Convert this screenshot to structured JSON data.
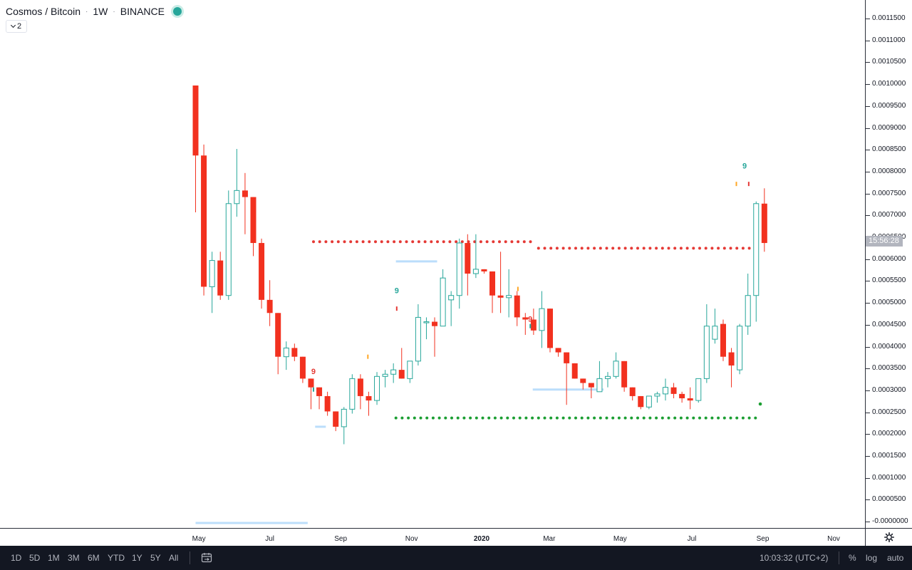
{
  "header": {
    "symbol": "Cosmos / Bitcoin",
    "interval": "1W",
    "exchange": "BINANCE",
    "separator": "·",
    "indicator_count": "2"
  },
  "price_scale": {
    "labels": [
      "0.0011500",
      "0.0011000",
      "0.0010500",
      "0.0010000",
      "0.0009500",
      "0.0009000",
      "0.0008500",
      "0.0008000",
      "0.0007500",
      "0.0007000",
      "0.0006500",
      "0.0006000",
      "0.0005500",
      "0.0005000",
      "0.0004500",
      "0.0004000",
      "0.0003500",
      "0.0003000",
      "0.0002500",
      "0.0002000",
      "0.0001500",
      "0.0001000",
      "0.0000500",
      "-0.0000000"
    ],
    "countdown": "15:56:28"
  },
  "time_axis": {
    "labels": [
      {
        "text": "May",
        "idx": 0.4,
        "bold": false
      },
      {
        "text": "Jul",
        "idx": 9.0,
        "bold": false
      },
      {
        "text": "Sep",
        "idx": 17.6,
        "bold": false
      },
      {
        "text": "Nov",
        "idx": 26.2,
        "bold": false
      },
      {
        "text": "2020",
        "idx": 34.7,
        "bold": true
      },
      {
        "text": "Mar",
        "idx": 42.9,
        "bold": false
      },
      {
        "text": "May",
        "idx": 51.5,
        "bold": false
      },
      {
        "text": "Jul",
        "idx": 60.2,
        "bold": false
      },
      {
        "text": "Sep",
        "idx": 68.8,
        "bold": false
      },
      {
        "text": "Nov",
        "idx": 77.4,
        "bold": false
      }
    ]
  },
  "bottom_bar": {
    "ranges": [
      "1D",
      "5D",
      "1M",
      "3M",
      "6M",
      "YTD",
      "1Y",
      "5Y",
      "All"
    ],
    "clock": "10:03:32 (UTC+2)",
    "options": [
      "%",
      "log",
      "auto"
    ]
  },
  "colors": {
    "up": "#26a69a",
    "down": "#f2311f",
    "resistance": "#e53935",
    "support": "#1b9e32",
    "level": "#bbdefb",
    "td9_red": "#e53935",
    "td9_green": "#26a69a",
    "td_orange": "#ffa726"
  },
  "chart_data": {
    "type": "candlestick",
    "title": "Cosmos / Bitcoin",
    "interval": "1W",
    "y_range": [
      -2e-05,
      0.0012
    ],
    "candles": [
      {
        "o": 0.001,
        "h": 0.001,
        "l": 0.00071,
        "c": 0.00084
      },
      {
        "o": 0.00084,
        "h": 0.000865,
        "l": 0.00052,
        "c": 0.00054
      },
      {
        "o": 0.00054,
        "h": 0.00062,
        "l": 0.00048,
        "c": 0.0006
      },
      {
        "o": 0.0006,
        "h": 0.00062,
        "l": 0.00051,
        "c": 0.00052
      },
      {
        "o": 0.00052,
        "h": 0.00076,
        "l": 0.00051,
        "c": 0.00073
      },
      {
        "o": 0.00073,
        "h": 0.000855,
        "l": 0.0007,
        "c": 0.00076
      },
      {
        "o": 0.00076,
        "h": 0.0008,
        "l": 0.00066,
        "c": 0.000745
      },
      {
        "o": 0.000745,
        "h": 0.000745,
        "l": 0.00061,
        "c": 0.00064
      },
      {
        "o": 0.00064,
        "h": 0.00065,
        "l": 0.00049,
        "c": 0.00051
      },
      {
        "o": 0.00051,
        "h": 0.000555,
        "l": 0.00045,
        "c": 0.00048
      },
      {
        "o": 0.00048,
        "h": 0.00048,
        "l": 0.00034,
        "c": 0.00038
      },
      {
        "o": 0.00038,
        "h": 0.000415,
        "l": 0.00035,
        "c": 0.0004
      },
      {
        "o": 0.0004,
        "h": 0.00041,
        "l": 0.00037,
        "c": 0.00038
      },
      {
        "o": 0.00038,
        "h": 0.00038,
        "l": 0.00032,
        "c": 0.00033
      },
      {
        "o": 0.00033,
        "h": 0.00033,
        "l": 0.00026,
        "c": 0.00031
      },
      {
        "o": 0.00031,
        "h": 0.00031,
        "l": 0.00026,
        "c": 0.00029
      },
      {
        "o": 0.00029,
        "h": 0.0003,
        "l": 0.000245,
        "c": 0.000255
      },
      {
        "o": 0.000255,
        "h": 0.000255,
        "l": 0.00021,
        "c": 0.00022
      },
      {
        "o": 0.00022,
        "h": 0.000265,
        "l": 0.00018,
        "c": 0.00026
      },
      {
        "o": 0.00026,
        "h": 0.00034,
        "l": 0.00025,
        "c": 0.00033
      },
      {
        "o": 0.00033,
        "h": 0.00034,
        "l": 0.00026,
        "c": 0.00029
      },
      {
        "o": 0.00029,
        "h": 0.0003,
        "l": 0.000245,
        "c": 0.00028
      },
      {
        "o": 0.00028,
        "h": 0.000345,
        "l": 0.00027,
        "c": 0.000335
      },
      {
        "o": 0.000335,
        "h": 0.00035,
        "l": 0.00031,
        "c": 0.00034
      },
      {
        "o": 0.00034,
        "h": 0.000365,
        "l": 0.00032,
        "c": 0.00035
      },
      {
        "o": 0.00035,
        "h": 0.0004,
        "l": 0.00033,
        "c": 0.00033
      },
      {
        "o": 0.00033,
        "h": 0.00037,
        "l": 0.00032,
        "c": 0.00037
      },
      {
        "o": 0.00037,
        "h": 0.0005,
        "l": 0.00036,
        "c": 0.00047
      },
      {
        "o": 0.00046,
        "h": 0.00047,
        "l": 0.00042,
        "c": 0.00046
      },
      {
        "o": 0.00046,
        "h": 0.00047,
        "l": 0.00038,
        "c": 0.00045
      },
      {
        "o": 0.00045,
        "h": 0.00058,
        "l": 0.00045,
        "c": 0.00056
      },
      {
        "o": 0.00051,
        "h": 0.00053,
        "l": 0.00045,
        "c": 0.00052
      },
      {
        "o": 0.00052,
        "h": 0.00065,
        "l": 0.00049,
        "c": 0.00064
      },
      {
        "o": 0.00064,
        "h": 0.00066,
        "l": 0.00052,
        "c": 0.00057
      },
      {
        "o": 0.00057,
        "h": 0.00066,
        "l": 0.00056,
        "c": 0.00058
      },
      {
        "o": 0.00058,
        "h": 0.00058,
        "l": 0.00057,
        "c": 0.000575
      },
      {
        "o": 0.000575,
        "h": 0.000575,
        "l": 0.00048,
        "c": 0.00052
      },
      {
        "o": 0.00052,
        "h": 0.00062,
        "l": 0.00048,
        "c": 0.000515
      },
      {
        "o": 0.000515,
        "h": 0.00058,
        "l": 0.00047,
        "c": 0.00052
      },
      {
        "o": 0.00052,
        "h": 0.00053,
        "l": 0.00045,
        "c": 0.00047
      },
      {
        "o": 0.00047,
        "h": 0.00048,
        "l": 0.00043,
        "c": 0.000465
      },
      {
        "o": 0.000465,
        "h": 0.00049,
        "l": 0.00043,
        "c": 0.00044
      },
      {
        "o": 0.00044,
        "h": 0.00053,
        "l": 0.0004,
        "c": 0.00049
      },
      {
        "o": 0.00049,
        "h": 0.00049,
        "l": 0.00039,
        "c": 0.0004
      },
      {
        "o": 0.0004,
        "h": 0.0004,
        "l": 0.00038,
        "c": 0.00039
      },
      {
        "o": 0.00039,
        "h": 0.00039,
        "l": 0.00027,
        "c": 0.000365
      },
      {
        "o": 0.000365,
        "h": 0.000365,
        "l": 0.00033,
        "c": 0.00033
      },
      {
        "o": 0.00033,
        "h": 0.00033,
        "l": 0.000305,
        "c": 0.00032
      },
      {
        "o": 0.00032,
        "h": 0.00032,
        "l": 0.000285,
        "c": 0.00031
      },
      {
        "o": 0.0003,
        "h": 0.00037,
        "l": 0.0003,
        "c": 0.00033
      },
      {
        "o": 0.00033,
        "h": 0.000345,
        "l": 0.00031,
        "c": 0.000335
      },
      {
        "o": 0.000335,
        "h": 0.00039,
        "l": 0.00033,
        "c": 0.00037
      },
      {
        "o": 0.00037,
        "h": 0.00037,
        "l": 0.0003,
        "c": 0.00031
      },
      {
        "o": 0.00031,
        "h": 0.00031,
        "l": 0.00028,
        "c": 0.00029
      },
      {
        "o": 0.00029,
        "h": 0.00029,
        "l": 0.00026,
        "c": 0.000265
      },
      {
        "o": 0.000265,
        "h": 0.00029,
        "l": 0.00026,
        "c": 0.00029
      },
      {
        "o": 0.00029,
        "h": 0.0003,
        "l": 0.000275,
        "c": 0.000295
      },
      {
        "o": 0.000295,
        "h": 0.00033,
        "l": 0.00028,
        "c": 0.00031
      },
      {
        "o": 0.00031,
        "h": 0.00032,
        "l": 0.000285,
        "c": 0.000295
      },
      {
        "o": 0.000295,
        "h": 0.0003,
        "l": 0.000275,
        "c": 0.000285
      },
      {
        "o": 0.000285,
        "h": 0.00031,
        "l": 0.00026,
        "c": 0.00028
      },
      {
        "o": 0.00028,
        "h": 0.00033,
        "l": 0.000275,
        "c": 0.00033
      },
      {
        "o": 0.00033,
        "h": 0.0005,
        "l": 0.00032,
        "c": 0.00045
      },
      {
        "o": 0.00042,
        "h": 0.00049,
        "l": 0.00041,
        "c": 0.00045
      },
      {
        "o": 0.000455,
        "h": 0.000465,
        "l": 0.00037,
        "c": 0.00038
      },
      {
        "o": 0.00039,
        "h": 0.0004,
        "l": 0.00031,
        "c": 0.00036
      },
      {
        "o": 0.00035,
        "h": 0.000455,
        "l": 0.00034,
        "c": 0.00045
      },
      {
        "o": 0.00045,
        "h": 0.00057,
        "l": 0.00043,
        "c": 0.00052
      },
      {
        "o": 0.00052,
        "h": 0.000735,
        "l": 0.00046,
        "c": 0.00073
      },
      {
        "o": 0.00073,
        "h": 0.000765,
        "l": 0.00062,
        "c": 0.00064
      }
    ],
    "resistance_levels": [
      {
        "price": 0.000643,
        "from_idx": 14.3,
        "to_idx": 40.9
      },
      {
        "price": 0.000628,
        "from_idx": 41.6,
        "to_idx": 68.5
      }
    ],
    "support_level": {
      "price": 0.00024,
      "from_idx": 24.3,
      "to_idx": 68.5
    },
    "level_lines": [
      {
        "price": -0.0,
        "from_idx": 0.0,
        "to_idx": 13.6
      },
      {
        "price": 0.00022,
        "from_idx": 14.5,
        "to_idx": 15.8
      },
      {
        "price": 0.000598,
        "from_idx": 24.3,
        "to_idx": 29.3
      },
      {
        "price": 0.000305,
        "from_idx": 40.9,
        "to_idx": 49.5
      }
    ],
    "annotations": [
      {
        "text": "9",
        "idx": 14.3,
        "price": 0.00034,
        "kind": "td9_red"
      },
      {
        "text": "9",
        "idx": 24.4,
        "price": 0.000525,
        "kind": "td9_green"
      },
      {
        "text": "9",
        "idx": 40.6,
        "price": 0.00046,
        "kind": "td9_red"
      },
      {
        "text": "9",
        "idx": 66.6,
        "price": 0.00081,
        "kind": "td9_green"
      }
    ],
    "signal_dots": [
      {
        "idx": 68.5,
        "price": 0.000272,
        "kind": "support"
      }
    ],
    "small_marks": [
      {
        "idx": 14.3,
        "price": 0.000305,
        "kind": "td9_green"
      },
      {
        "idx": 20.9,
        "price": 0.00038,
        "kind": "td_orange"
      },
      {
        "idx": 24.4,
        "price": 0.00049,
        "kind": "td9_red"
      },
      {
        "idx": 40.6,
        "price": 0.00045,
        "kind": "td9_green"
      },
      {
        "idx": 39.1,
        "price": 0.000535,
        "kind": "td_orange"
      },
      {
        "idx": 65.6,
        "price": 0.000775,
        "kind": "td_orange"
      },
      {
        "idx": 67.1,
        "price": 0.000775,
        "kind": "td9_red"
      }
    ]
  }
}
